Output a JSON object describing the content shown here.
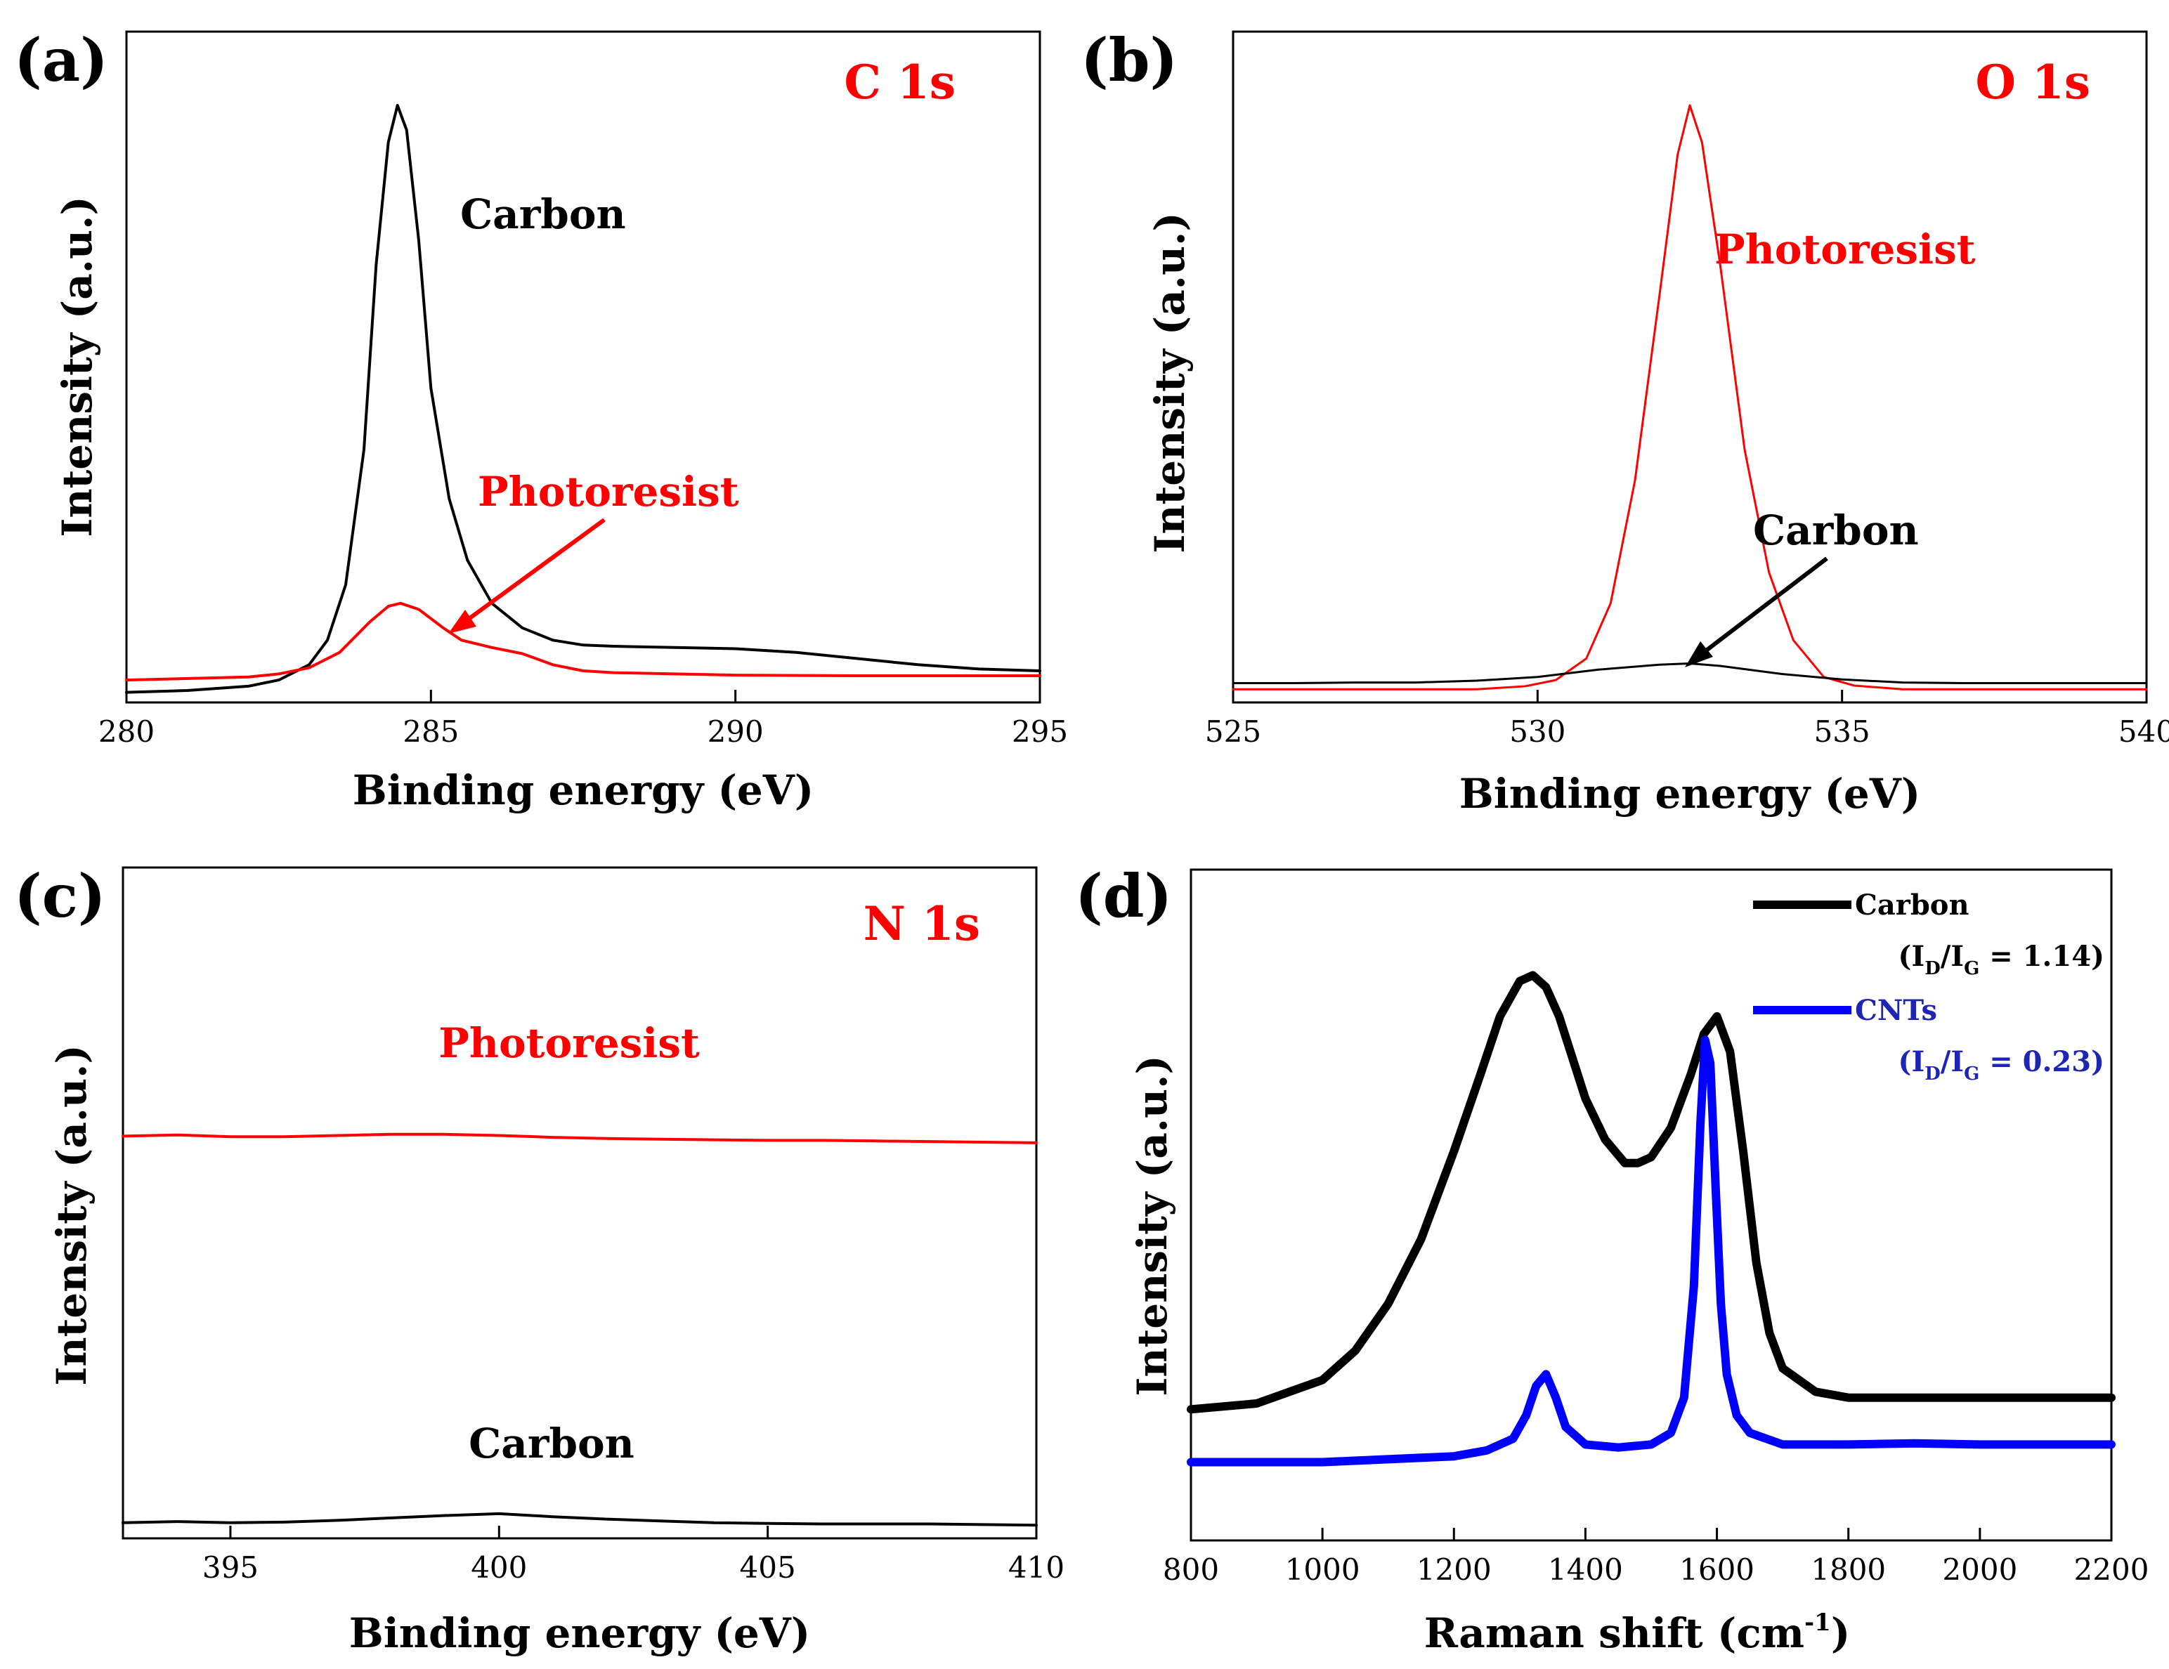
{
  "colors": {
    "black": "#000000",
    "red": "#ff0000",
    "blue": "#0000ff",
    "legend_blue": "#1e24b4"
  },
  "chart_data": [
    {
      "panel": "(a)",
      "type": "line",
      "title": "C 1s",
      "xlabel": "Binding energy (eV)",
      "ylabel": "Intensity (a.u.)",
      "xlim": [
        280,
        295
      ],
      "ylim": [
        0,
        100
      ],
      "xticks": [
        280,
        285,
        290,
        295
      ],
      "series": [
        {
          "name": "Carbon",
          "color": "#000000",
          "x": [
            280,
            281,
            282,
            282.5,
            283,
            283.3,
            283.6,
            283.9,
            284.1,
            284.3,
            284.45,
            284.6,
            284.8,
            285.0,
            285.3,
            285.6,
            286.0,
            286.5,
            287,
            287.5,
            288,
            289,
            290,
            291,
            292,
            293,
            294,
            295
          ],
          "y": [
            0.5,
            0.8,
            1.5,
            2.5,
            5,
            9,
            18,
            40,
            70,
            90,
            96,
            92,
            74,
            50,
            32,
            22,
            15,
            11,
            9,
            8.2,
            8,
            7.8,
            7.6,
            7,
            6,
            5,
            4.3,
            4
          ]
        },
        {
          "name": "Photoresist",
          "color": "#ff0000",
          "x": [
            280,
            282,
            282.5,
            283,
            283.5,
            284.0,
            284.3,
            284.5,
            284.8,
            285.2,
            285.5,
            286.0,
            286.5,
            287,
            287.5,
            288,
            289,
            290,
            292,
            295
          ],
          "y": [
            2.5,
            3,
            3.5,
            4.5,
            7,
            12,
            14.5,
            15,
            14,
            11,
            9,
            7.8,
            6.8,
            5,
            4,
            3.7,
            3.5,
            3.3,
            3.2,
            3.2
          ]
        }
      ],
      "annotations": [
        {
          "text": "Carbon",
          "color": "#000000"
        },
        {
          "text": "Photoresist",
          "color": "#ff0000"
        }
      ]
    },
    {
      "panel": "(b)",
      "type": "line",
      "title": "O 1s",
      "xlabel": "Binding energy (eV)",
      "ylabel": "Intensity (a.u.)",
      "xlim": [
        525,
        540
      ],
      "ylim": [
        0,
        100
      ],
      "xticks": [
        525,
        530,
        535,
        540
      ],
      "series": [
        {
          "name": "Photoresist",
          "color": "#ff0000",
          "x": [
            525,
            529,
            529.8,
            530.3,
            530.8,
            531.2,
            531.6,
            532.0,
            532.3,
            532.5,
            532.7,
            533.0,
            533.4,
            533.8,
            534.2,
            534.7,
            535.2,
            536,
            537,
            540
          ],
          "y": [
            1,
            1,
            1.5,
            2.5,
            6,
            15,
            35,
            65,
            88,
            96,
            90,
            70,
            40,
            20,
            9,
            3,
            1.6,
            1,
            1,
            1
          ]
        },
        {
          "name": "Carbon",
          "color": "#000000",
          "x": [
            525,
            526,
            527,
            528,
            529,
            530,
            531,
            532,
            532.5,
            533,
            534,
            535,
            536,
            537,
            538,
            539,
            540
          ],
          "y": [
            2,
            2,
            2.1,
            2.1,
            2.4,
            3,
            4.2,
            5,
            5.2,
            4.8,
            3.5,
            2.6,
            2.1,
            2,
            2,
            2,
            2
          ]
        }
      ],
      "annotations": [
        {
          "text": "Photoresist",
          "color": "#ff0000"
        },
        {
          "text": "Carbon",
          "color": "#000000"
        }
      ]
    },
    {
      "panel": "(c)",
      "type": "line",
      "title": "N 1s",
      "xlabel": "Binding energy (eV)",
      "ylabel": "Intensity (a.u.)",
      "xlim": [
        393,
        410
      ],
      "ylim": [
        0,
        100
      ],
      "xticks": [
        395,
        400,
        405,
        410
      ],
      "series": [
        {
          "name": "Photoresist",
          "color": "#ff0000",
          "x": [
            393,
            394,
            395,
            396,
            397,
            398,
            399,
            400,
            401,
            402,
            403,
            404,
            405,
            406,
            407,
            408,
            409,
            410
          ],
          "y": [
            66,
            66.2,
            65.9,
            65.9,
            66.1,
            66.3,
            66.3,
            66.1,
            65.8,
            65.6,
            65.5,
            65.4,
            65.3,
            65.3,
            65.2,
            65.1,
            65,
            64.9
          ]
        },
        {
          "name": "Carbon",
          "color": "#000000",
          "x": [
            393,
            394,
            395,
            396,
            397,
            398,
            399,
            400,
            401,
            402,
            403,
            404,
            405,
            406,
            407,
            408,
            409,
            410
          ],
          "y": [
            2,
            2.2,
            2,
            2.1,
            2.4,
            2.8,
            3.2,
            3.5,
            3,
            2.6,
            2.3,
            2,
            1.9,
            1.8,
            1.8,
            1.8,
            1.7,
            1.6
          ]
        }
      ],
      "annotations": [
        {
          "text": "Photoresist",
          "color": "#ff0000"
        },
        {
          "text": "Carbon",
          "color": "#000000"
        }
      ]
    },
    {
      "panel": "(d)",
      "type": "line",
      "title": "",
      "xlabel": "Raman shift (cm",
      "xlabel_sup": "-1",
      "xlabel_tail": ")",
      "ylabel": "Intensity (a.u.)",
      "xlim": [
        800,
        2200
      ],
      "ylim": [
        0,
        100
      ],
      "xticks": [
        800,
        1000,
        1200,
        1400,
        1600,
        1800,
        2000,
        2200
      ],
      "series": [
        {
          "name": "Carbon",
          "ratio_prefix": "(I",
          "ratio_d": "D",
          "ratio_mid": "/I",
          "ratio_g": "G",
          "ratio_value": " = 1.14)",
          "color": "#000000",
          "x": [
            800,
            900,
            1000,
            1050,
            1100,
            1150,
            1200,
            1240,
            1270,
            1300,
            1320,
            1340,
            1360,
            1380,
            1400,
            1430,
            1460,
            1480,
            1500,
            1530,
            1560,
            1580,
            1600,
            1620,
            1640,
            1660,
            1680,
            1700,
            1750,
            1800,
            1900,
            2000,
            2100,
            2200
          ],
          "y": [
            19,
            20,
            24,
            29,
            37,
            48,
            63,
            76,
            86,
            92,
            93,
            91,
            86,
            79,
            72,
            65,
            61,
            61,
            62,
            67,
            76,
            83,
            86,
            80,
            63,
            44,
            32,
            26,
            22,
            21,
            21,
            21,
            21,
            21
          ]
        },
        {
          "name": "CNTs",
          "ratio_prefix": "(I",
          "ratio_d": "D",
          "ratio_mid": "/I",
          "ratio_g": "G",
          "ratio_value": " = 0.23)",
          "color": "#0000ff",
          "x": [
            800,
            1000,
            1200,
            1250,
            1290,
            1310,
            1325,
            1340,
            1355,
            1370,
            1400,
            1450,
            1500,
            1530,
            1550,
            1565,
            1575,
            1582,
            1590,
            1598,
            1606,
            1615,
            1630,
            1650,
            1700,
            1800,
            1900,
            2000,
            2100,
            2200
          ],
          "y": [
            10,
            10,
            11,
            12,
            14,
            18,
            23,
            25,
            21,
            16,
            13,
            12.5,
            13,
            15,
            21,
            40,
            68,
            82,
            78,
            57,
            37,
            25,
            18,
            15,
            13,
            13,
            13.2,
            13,
            13,
            13
          ]
        }
      ]
    }
  ]
}
